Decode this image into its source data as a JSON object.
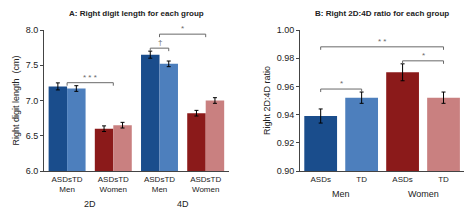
{
  "chart_data": [
    {
      "type": "bar",
      "title": "A: Right digit length for each group",
      "ylabel": "Right digit length  (cm)",
      "categories": [
        "ASDsTD\nMen",
        "ASDsTD\nWomen",
        "ASDsTD\nMen",
        "ASDsTD\nWomen"
      ],
      "series": [
        {
          "values": [
            7.2,
            6.6,
            7.65,
            6.82
          ],
          "errors": [
            0.05,
            0.04,
            0.05,
            0.04
          ],
          "colors": [
            "#1a4d8c",
            "#8b1a1a",
            "#1a4d8c",
            "#8b1a1a"
          ]
        },
        {
          "values": [
            7.17,
            6.65,
            7.52,
            7.0
          ],
          "errors": [
            0.04,
            0.04,
            0.04,
            0.04
          ],
          "colors": [
            "#4d7fbd",
            "#c98080",
            "#4d7fbd",
            "#c98080"
          ]
        }
      ],
      "ylim": [
        6.0,
        8.0
      ],
      "yticks": [
        {
          "value": 6.0,
          "label": "6.0"
        },
        6.5,
        {
          "value": 7.0,
          "label": "7.0"
        },
        7.5,
        {
          "value": 8.0,
          "label": "8.0"
        }
      ],
      "grid": false,
      "group_labels": [
        {
          "text": "2D",
          "categories": [
            0,
            1
          ]
        },
        {
          "text": "4D",
          "categories": [
            2,
            3
          ]
        }
      ],
      "brackets": [
        {
          "text": "* * *",
          "from": {
            "category": 0
          },
          "to": {
            "category": 1
          }
        },
        {
          "text": "†",
          "from": {
            "category": 2,
            "series": 0
          },
          "to": {
            "category": 2,
            "series": 1
          }
        },
        {
          "text": "*",
          "from": {
            "category": 2
          },
          "to": {
            "category": 3
          }
        }
      ]
    },
    {
      "type": "bar",
      "title": "B: Right 2D:4D ratio for each group",
      "ylabel": "Right 2D:4D ratio",
      "categories": [
        "ASDs",
        "TD",
        "ASDs",
        "TD"
      ],
      "values": [
        0.939,
        0.952,
        0.97,
        0.952
      ],
      "errors": [
        0.005,
        0.004,
        0.006,
        0.004
      ],
      "colors": [
        "#1a4d8c",
        "#4d7fbd",
        "#8b1a1a",
        "#c98080"
      ],
      "ylim": [
        0.9,
        1.0
      ],
      "yticks": [
        {
          "value": 0.9,
          "label": "0.90"
        },
        0.92,
        0.94,
        0.96,
        0.98,
        {
          "value": 1.0,
          "label": "1.00"
        }
      ],
      "grid": false,
      "group_labels": [
        {
          "text": "Men",
          "categories": [
            0,
            1
          ]
        },
        {
          "text": "Women",
          "categories": [
            2,
            3
          ]
        }
      ],
      "brackets": [
        {
          "text": "*",
          "from": {
            "category": 0
          },
          "to": {
            "category": 1
          }
        },
        {
          "text": "* *",
          "from": {
            "category": 0
          },
          "to": {
            "category": 3
          }
        },
        {
          "text": "*",
          "from": {
            "category": 2
          },
          "to": {
            "category": 3
          }
        }
      ]
    }
  ]
}
